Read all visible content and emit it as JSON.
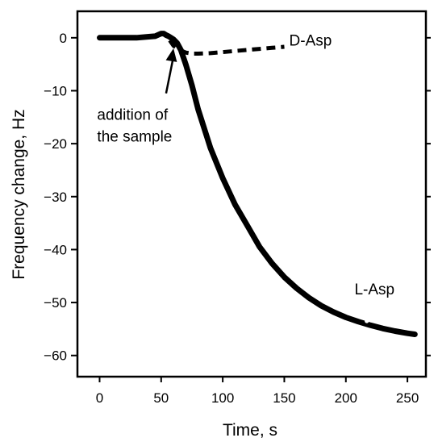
{
  "chart_data": {
    "type": "line",
    "xlabel": "Time, s",
    "ylabel": "Frequency change, Hz",
    "xlim": [
      -18,
      265
    ],
    "ylim": [
      -64,
      5
    ],
    "x_ticks": [
      0,
      50,
      100,
      150,
      200,
      250
    ],
    "y_ticks": [
      0,
      -10,
      -20,
      -30,
      -40,
      -50,
      -60
    ],
    "x_tick_labels": [
      "0",
      "50",
      "100",
      "150",
      "200",
      "250"
    ],
    "y_tick_labels": [
      "0",
      "−10",
      "−20",
      "−30",
      "−40",
      "−50",
      "−60"
    ],
    "grid": false,
    "series": [
      {
        "name": "L-Asp",
        "style": "solid",
        "color": "#000000",
        "x": [
          0,
          10,
          20,
          30,
          40,
          45,
          48,
          50,
          52,
          54,
          56,
          58,
          60,
          63,
          66,
          70,
          75,
          80,
          90,
          100,
          110,
          120,
          130,
          140,
          150,
          160,
          170,
          180,
          190,
          200,
          210,
          220,
          230,
          240,
          250,
          256
        ],
        "y": [
          0,
          0,
          0,
          0,
          0.2,
          0.3,
          0.6,
          0.8,
          0.8,
          0.5,
          0.3,
          0,
          -0.3,
          -1,
          -2.3,
          -5,
          -9,
          -13.5,
          -20.8,
          -26.5,
          -31.5,
          -35.5,
          -39.5,
          -42.6,
          -45.2,
          -47.3,
          -49.1,
          -50.6,
          -51.8,
          -52.8,
          -53.6,
          -54.3,
          -54.9,
          -55.4,
          -55.8,
          -56
        ]
      },
      {
        "name": "D-Asp",
        "style": "dashed",
        "color": "#000000",
        "x": [
          57,
          60,
          65,
          70,
          75,
          80,
          90,
          100,
          110,
          120,
          130,
          140,
          150
        ],
        "y": [
          -0.5,
          -1.5,
          -2.3,
          -2.8,
          -3,
          -3,
          -2.9,
          -2.7,
          -2.5,
          -2.3,
          -2.1,
          -1.9,
          -1.7
        ]
      }
    ],
    "markers": [
      {
        "x": 130,
        "y": -36.5,
        "color": "#ffffff"
      },
      {
        "x": 217,
        "y": -53.5,
        "color": "#ffffff"
      }
    ],
    "series_labels": [
      {
        "text": "D-Asp",
        "x": 154,
        "y": -1.5
      },
      {
        "text": "L-Asp",
        "x": 207,
        "y": -48.5
      }
    ],
    "annotation": {
      "lines": [
        "addition of",
        "the sample"
      ],
      "text_x": -2,
      "text_y": -15.5,
      "arrow_from": [
        54,
        -10.5
      ],
      "arrow_to": [
        60,
        -2
      ]
    }
  }
}
